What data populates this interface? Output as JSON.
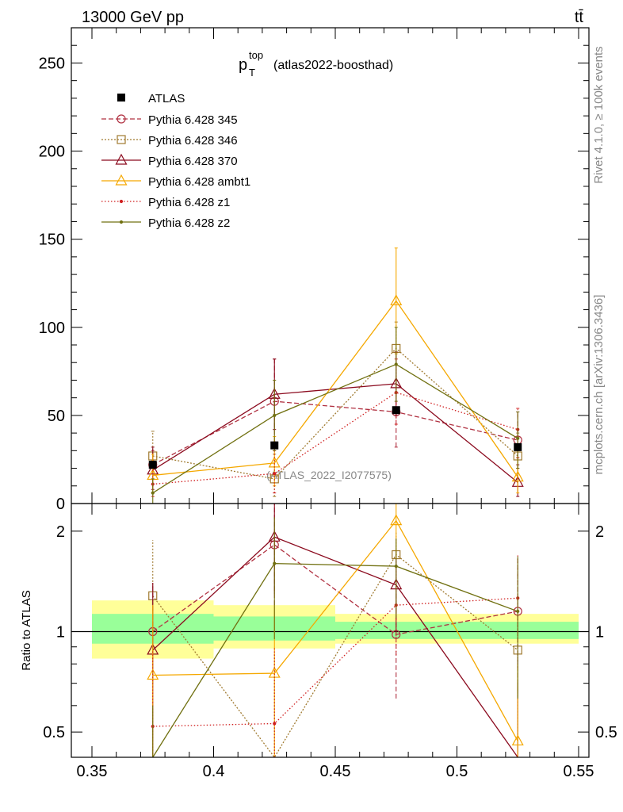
{
  "header": {
    "energy_label": "13000 GeV pp",
    "process_label": "tt̄"
  },
  "side_labels": {
    "rivet": "Rivet 4.1.0, ≥ 100k events",
    "mcplots": "mcplots.cern.ch [arXiv:1306.3436]"
  },
  "chart_data": [
    {
      "type": "line",
      "title_main": "p",
      "title_sub": "T",
      "title_sup": "top",
      "title_suffix": "(atlas2022-boosthad)",
      "watermark": "(ATLAS_2022_I2077575)",
      "xlim": [
        0.35,
        0.55
      ],
      "ylim": [
        0,
        270
      ],
      "yticks": [
        0,
        50,
        100,
        150,
        200,
        250
      ],
      "ytick_labels": [
        "0",
        "50",
        "100",
        "150",
        "200",
        "250"
      ],
      "x": [
        0.375,
        0.425,
        0.475,
        0.525
      ],
      "atlas": {
        "name": "ATLAS",
        "values": [
          22,
          33,
          53,
          32
        ]
      },
      "series": [
        {
          "name": "Pythia 6.428 345",
          "color": "#b03040",
          "dash": "6,3",
          "marker": "circle",
          "values": [
            22,
            58,
            52,
            36
          ],
          "err": [
            [
              18,
              30
            ],
            [
              35,
              82
            ],
            [
              32,
              70
            ],
            [
              20,
              52
            ]
          ]
        },
        {
          "name": "Pythia 6.428 346",
          "color": "#a07a30",
          "dash": "2,2",
          "marker": "square",
          "values": [
            27,
            14,
            88,
            27
          ],
          "err": [
            [
              14,
              41
            ],
            [
              4,
              28
            ],
            [
              70,
              103
            ],
            [
              14,
              40
            ]
          ]
        },
        {
          "name": "Pythia 6.428 370",
          "color": "#8b0a1e",
          "dash": "",
          "marker": "triangle",
          "values": [
            19,
            62,
            68,
            12
          ],
          "err": [
            [
              8,
              32
            ],
            [
              42,
              82
            ],
            [
              50,
              86
            ],
            [
              4,
              22
            ]
          ]
        },
        {
          "name": "Pythia 6.428 ambt1",
          "color": "#f5a800",
          "dash": "",
          "marker": "triangle",
          "values": [
            16,
            23,
            115,
            15
          ],
          "err": [
            [
              6,
              28
            ],
            [
              10,
              38
            ],
            [
              85,
              145
            ],
            [
              6,
              26
            ]
          ]
        },
        {
          "name": "Pythia 6.428 z1",
          "color": "#d02020",
          "dash": "1.5,2.5",
          "marker": "dot",
          "values": [
            11,
            17,
            63,
            42
          ],
          "err": [
            [
              4,
              20
            ],
            [
              6,
              30
            ],
            [
              45,
              82
            ],
            [
              26,
              54
            ]
          ]
        },
        {
          "name": "Pythia 6.428 z2",
          "color": "#707010",
          "dash": "",
          "marker": "dot",
          "values": [
            6,
            50,
            79,
            37
          ],
          "err": [
            [
              0,
              14
            ],
            [
              30,
              70
            ],
            [
              58,
              100
            ],
            [
              20,
              52
            ]
          ]
        }
      ]
    },
    {
      "type": "line",
      "ylabel": "Ratio to ATLAS",
      "xlim": [
        0.35,
        0.55
      ],
      "ylim": [
        0.42,
        2.42
      ],
      "yticks": [
        0.5,
        1,
        2
      ],
      "ytick_labels": [
        "0.5",
        "1",
        "2"
      ],
      "xticks": [
        0.35,
        0.4,
        0.45,
        0.5,
        0.55
      ],
      "xtick_labels": [
        "0.35",
        "0.4",
        "0.45",
        "0.5",
        "0.55"
      ],
      "x": [
        0.375,
        0.425,
        0.475,
        0.525
      ],
      "bands": [
        {
          "xmin": 0.35,
          "xmax": 0.4,
          "inner": [
            0.92,
            1.13
          ],
          "outer": [
            0.83,
            1.24
          ]
        },
        {
          "xmin": 0.4,
          "xmax": 0.45,
          "inner": [
            0.94,
            1.11
          ],
          "outer": [
            0.89,
            1.2
          ]
        },
        {
          "xmin": 0.45,
          "xmax": 0.55,
          "inner": [
            0.95,
            1.07
          ],
          "outer": [
            0.92,
            1.13
          ]
        }
      ],
      "band_colors": {
        "inner": "#99ff99",
        "outer": "#ffff99"
      },
      "series": [
        {
          "name": "Pythia 6.428 345",
          "values": [
            1.0,
            1.82,
            0.98,
            1.15
          ],
          "err": [
            [
              0.7,
              1.4
            ],
            [
              1.2,
              2.5
            ],
            [
              0.63,
              1.32
            ],
            [
              0.66,
              1.66
            ]
          ]
        },
        {
          "name": "Pythia 6.428 346",
          "values": [
            1.28,
            0.38,
            1.7,
            0.88
          ],
          "err": [
            [
              0.6,
              1.88
            ],
            [
              0.3,
              0.86
            ],
            [
              1.35,
              2.0
            ],
            [
              0.47,
              1.28
            ]
          ]
        },
        {
          "name": "Pythia 6.428 370",
          "values": [
            0.88,
            1.92,
            1.38,
            0.33
          ],
          "err": [
            [
              0.35,
              1.4
            ],
            [
              1.3,
              2.5
            ],
            [
              1.0,
              1.75
            ],
            [
              0.15,
              0.7
            ]
          ]
        },
        {
          "name": "Pythia 6.428 ambt1",
          "values": [
            0.74,
            0.75,
            2.15,
            0.47
          ],
          "err": [
            [
              0.28,
              1.2
            ],
            [
              0.3,
              1.2
            ],
            [
              1.65,
              2.5
            ],
            [
              0.2,
              0.8
            ]
          ]
        },
        {
          "name": "Pythia 6.428 z1",
          "values": [
            0.52,
            0.53,
            1.2,
            1.26
          ],
          "err": [
            [
              0.2,
              0.88
            ],
            [
              0.2,
              0.9
            ],
            [
              0.85,
              1.56
            ],
            [
              0.78,
              1.7
            ]
          ]
        },
        {
          "name": "Pythia 6.428 z2",
          "values": [
            0.28,
            1.6,
            1.57,
            1.15
          ],
          "err": [
            [
              0.05,
              0.6
            ],
            [
              0.95,
              2.2
            ],
            [
              1.1,
              1.9
            ],
            [
              0.63,
              1.68
            ]
          ]
        }
      ]
    }
  ]
}
